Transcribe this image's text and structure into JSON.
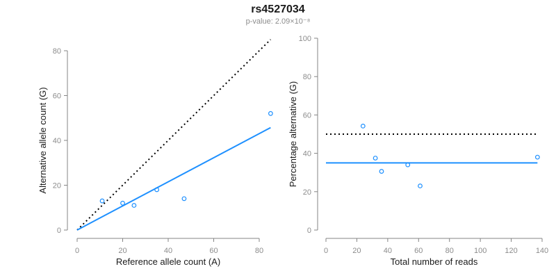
{
  "header": {
    "title": "rs4527034",
    "subtitle": "p-value: 2.09×10⁻⁸"
  },
  "colors": {
    "accent_blue": "#1E90FF",
    "line_black": "#000000",
    "axis_gray": "#848484",
    "tick_label_gray": "#8c8c8c",
    "text_dark": "#1a1a1a",
    "background": "#ffffff"
  },
  "chart_data": [
    {
      "type": "scatter",
      "name": "allele-count-scatter",
      "title": "",
      "xlabel": "Reference allele count (A)",
      "ylabel": "Alternative allele count (G)",
      "xlim": [
        0,
        85
      ],
      "ylim": [
        0,
        85
      ],
      "xticks": [
        0,
        20,
        40,
        60,
        80
      ],
      "yticks": [
        0,
        20,
        40,
        60,
        80
      ],
      "grid": false,
      "legend": false,
      "points": [
        [
          11,
          13
        ],
        [
          20,
          12
        ],
        [
          25,
          11
        ],
        [
          35,
          18
        ],
        [
          47,
          14
        ],
        [
          85,
          52
        ]
      ],
      "lines": [
        {
          "name": "identity-dotted-line",
          "style": "dotted",
          "color": "#000000",
          "x1": 0,
          "y1": 0,
          "x2": 85,
          "y2": 85
        },
        {
          "name": "fit-line",
          "style": "solid",
          "color": "#1E90FF",
          "x1": 0,
          "y1": 0,
          "x2": 85,
          "y2": 45.7
        }
      ]
    },
    {
      "type": "scatter",
      "name": "percentage-vs-reads-scatter",
      "title": "",
      "xlabel": "Total number of reads",
      "ylabel": "Percentage alternative (G)",
      "xlim": [
        0,
        140
      ],
      "ylim": [
        0,
        100
      ],
      "xticks": [
        0,
        20,
        40,
        60,
        80,
        100,
        120,
        140
      ],
      "yticks": [
        0,
        20,
        40,
        60,
        80,
        100
      ],
      "grid": false,
      "legend": false,
      "points": [
        [
          24,
          54.2
        ],
        [
          32,
          37.5
        ],
        [
          36,
          30.6
        ],
        [
          53,
          34
        ],
        [
          61,
          23
        ],
        [
          137,
          38
        ]
      ],
      "lines": [
        {
          "name": "expected-50pct-dotted-line",
          "style": "dotted",
          "color": "#000000",
          "x1": 0,
          "y1": 50,
          "x2": 137,
          "y2": 50
        },
        {
          "name": "mean-percentage-line",
          "style": "solid",
          "color": "#1E90FF",
          "x1": 0,
          "y1": 35,
          "x2": 137,
          "y2": 35
        }
      ]
    }
  ]
}
